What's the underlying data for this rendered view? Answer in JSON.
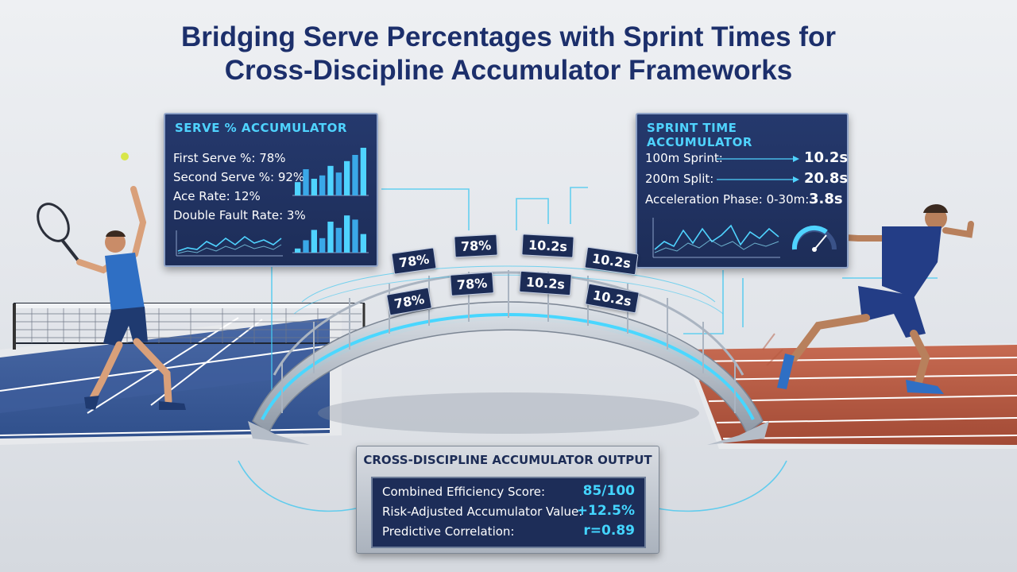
{
  "title": {
    "line1": "Bridging Serve Percentages with Sprint Times for",
    "line2": "Cross-Discipline Accumulator Frameworks"
  },
  "serve_panel": {
    "title": "SERVE % ACCUMULATOR",
    "stats": [
      {
        "label": "First Serve %: 78%"
      },
      {
        "label": "Second Serve %: 92%"
      },
      {
        "label": "Ace Rate: 12%"
      },
      {
        "label": "Double Fault Rate: 3%"
      }
    ],
    "bar_chart_top": [
      0.28,
      0.55,
      0.35,
      0.42,
      0.62,
      0.48,
      0.72,
      0.85,
      1.0
    ],
    "bar_chart_bottom": [
      0.1,
      0.3,
      0.55,
      0.35,
      0.75,
      0.6,
      0.9,
      0.8,
      0.45
    ]
  },
  "sprint_panel": {
    "title": "SPRINT TIME ACCUMULATOR",
    "stats": [
      {
        "label": "100m Sprint:",
        "value": "10.2s"
      },
      {
        "label": "200m Split:",
        "value": "20.8s"
      },
      {
        "label": "Acceleration Phase: 0-30m:",
        "value": "3.8s"
      }
    ]
  },
  "bridge_tags": {
    "serve_pct": "78%",
    "sprint_time": "10.2s"
  },
  "output_panel": {
    "title": "CROSS-DISCIPLINE ACCUMULATOR OUTPUT",
    "rows": [
      {
        "label": "Combined Efficiency Score:",
        "value": "85/100"
      },
      {
        "label": "Risk-Adjusted Accumulator Value:",
        "value": "+12.5%"
      },
      {
        "label": "Predictive Correlation:",
        "value": "r=0.89"
      }
    ]
  },
  "colors": {
    "navy": "#1c2f6b",
    "accent": "#43d5ff",
    "court": "#3a5a96",
    "track": "#b5563f"
  }
}
